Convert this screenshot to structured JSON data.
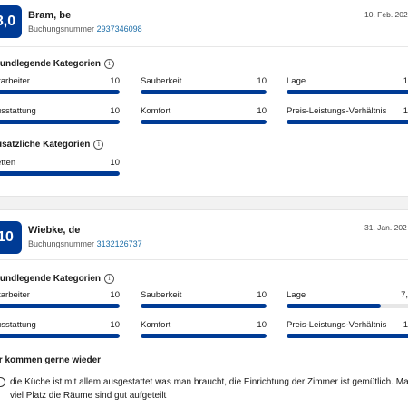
{
  "reviews": [
    {
      "score": "8,0",
      "name": "Bram, be",
      "booking_label": "Buchungsnummer",
      "booking_number": "2937346098",
      "date": "10. Feb. 202",
      "core_title": "rundlegende Kategorien",
      "core": [
        {
          "label": "itarbeiter",
          "value": "10",
          "fraction": 1.0
        },
        {
          "label": "Sauberkeit",
          "value": "10",
          "fraction": 1.0
        },
        {
          "label": "Lage",
          "value": "1",
          "fraction": 1.0
        },
        {
          "label": "usstattung",
          "value": "10",
          "fraction": 1.0
        },
        {
          "label": "Komfort",
          "value": "10",
          "fraction": 1.0
        },
        {
          "label": "Preis-Leistungs-Verhältnis",
          "value": "1",
          "fraction": 1.0
        }
      ],
      "extra_title": "usätzliche Kategorien",
      "extra": [
        {
          "label": "etten",
          "value": "10",
          "fraction": 1.0
        }
      ]
    },
    {
      "score": "10",
      "name": "Wiebke, de",
      "booking_label": "Buchungsnummer",
      "booking_number": "3132126737",
      "date": "31. Jan. 202",
      "core_title": "rundlegende Kategorien",
      "core": [
        {
          "label": "itarbeiter",
          "value": "10",
          "fraction": 1.0
        },
        {
          "label": "Sauberkeit",
          "value": "10",
          "fraction": 1.0
        },
        {
          "label": "Lage",
          "value": "7,",
          "fraction": 0.75
        },
        {
          "label": "usstattung",
          "value": "10",
          "fraction": 1.0
        },
        {
          "label": "Komfort",
          "value": "10",
          "fraction": 1.0
        },
        {
          "label": "Preis-Leistungs-Verhältnis",
          "value": "1",
          "fraction": 1.0
        }
      ],
      "comment_title": "ir kommen gerne wieder",
      "comment_text": "die Küche ist mit allem ausgestattet was man braucht, die Einrichtung der Zimmer ist gemütlich. Ma hat viel Platz die Räume sind gut aufgeteilt",
      "icons": {
        "comment": "smile-icon",
        "info": "info-icon"
      }
    }
  ]
}
